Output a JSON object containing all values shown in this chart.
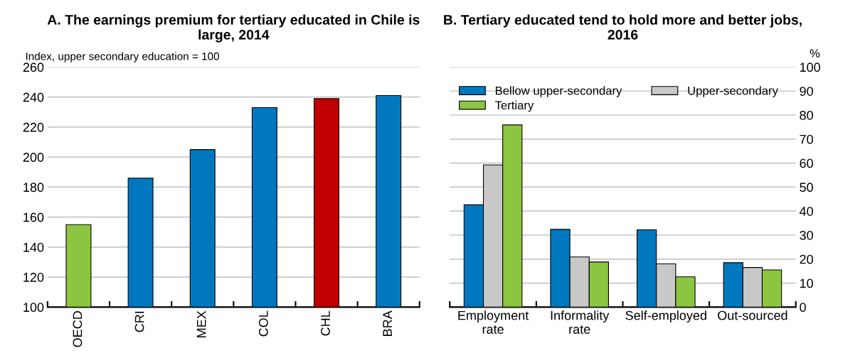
{
  "chart_data": [
    {
      "type": "bar",
      "title": "A. The earnings premium for tertiary educated in Chile is large, 2014",
      "ylabel": "Index, upper secondary education = 100",
      "categories": [
        "OECD",
        "CRI",
        "MEX",
        "COL",
        "CHL",
        "BRA"
      ],
      "values": [
        155,
        186,
        205,
        233,
        239,
        241
      ],
      "colors": [
        "#8cc641",
        "#0078c0",
        "#0078c0",
        "#0078c0",
        "#c00000",
        "#0078c0"
      ],
      "ylim": [
        100,
        260
      ],
      "yticks": [
        100,
        120,
        140,
        160,
        180,
        200,
        220,
        240,
        260
      ],
      "grid": "y",
      "legend": false
    },
    {
      "type": "bar",
      "title": "B. Tertiary educated tend to hold more and better jobs, 2016",
      "y2label": "%",
      "categories": [
        "Employment\nrate",
        "Informality\nrate",
        "Self-employed",
        "Out-sourced"
      ],
      "series": [
        {
          "name": "Bellow upper-secondary",
          "color": "#0078c0",
          "axis": "y2",
          "values": [
            42.6,
            32.4,
            32.2,
            18.5
          ]
        },
        {
          "name": "Upper-secondary",
          "color": "#c8c8c8",
          "axis": "y2",
          "values": [
            59.2,
            20.9,
            18.0,
            16.5
          ]
        },
        {
          "name": "Tertiary",
          "color": "#8cc641",
          "axis": "y2",
          "values": [
            75.9,
            18.8,
            12.6,
            15.5
          ]
        }
      ],
      "y2lim": [
        0,
        100
      ],
      "y2ticks": [
        0,
        10,
        20,
        30,
        40,
        50,
        60,
        70,
        80,
        90,
        100
      ],
      "grid": "y",
      "legend": "top left"
    }
  ]
}
